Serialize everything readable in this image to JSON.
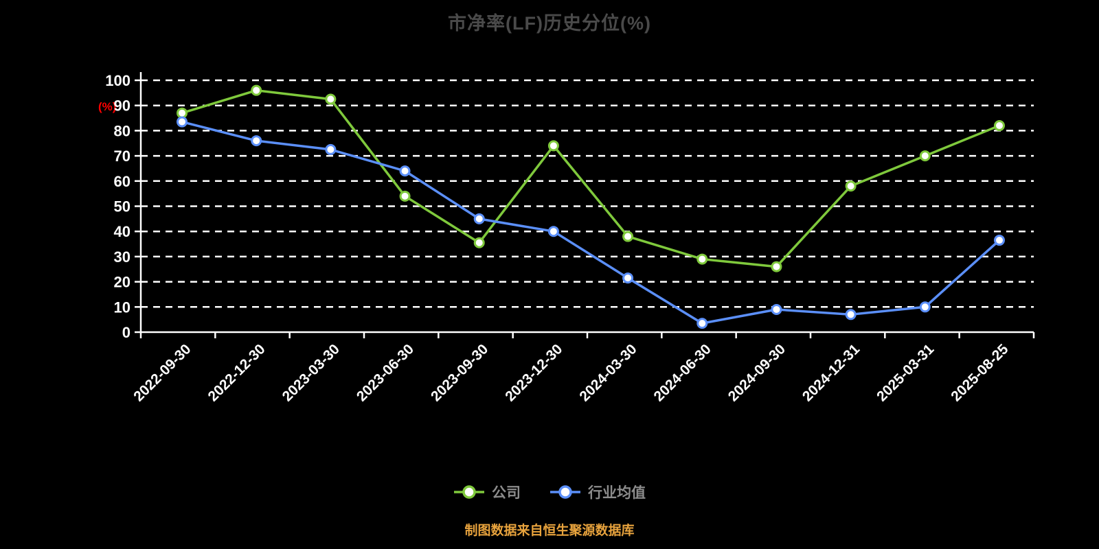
{
  "chart_data": {
    "type": "line",
    "title": "市净率(LF)历史分位(%)",
    "ylabel": "(%)",
    "ylim": [
      0,
      100
    ],
    "ytick_step": 10,
    "grid": "dashed-horizontal",
    "legend_position": "bottom",
    "categories": [
      "2022-09-30",
      "2022-12-30",
      "2023-03-30",
      "2023-06-30",
      "2023-09-30",
      "2023-12-30",
      "2024-03-30",
      "2024-06-30",
      "2024-09-30",
      "2024-12-31",
      "2025-03-31",
      "2025-08-25"
    ],
    "series": [
      {
        "name": "公司",
        "color": "#7fc93c",
        "values": [
          87,
          96,
          92.5,
          54,
          35.5,
          74,
          38,
          29,
          26,
          58,
          70,
          82
        ]
      },
      {
        "name": "行业均值",
        "color": "#5b8ff9",
        "values": [
          83.5,
          76,
          72.5,
          64,
          45,
          40,
          21.5,
          3.5,
          9,
          7,
          10,
          36.5
        ]
      }
    ],
    "axis_color": "#ffffff",
    "tick_label_color": "#ffffff",
    "ylabel_color": "#ff0000",
    "title_color": "#4a4a4a",
    "legend_text_color": "#8c8c8c"
  },
  "footer": {
    "source_note": "制图数据来自恒生聚源数据库"
  }
}
